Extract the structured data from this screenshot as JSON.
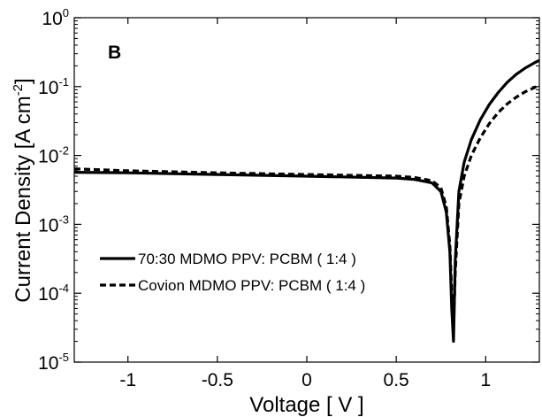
{
  "chart_data": {
    "type": "line",
    "panel_label": "B",
    "xlabel": "Voltage [ V ]",
    "ylabel": {
      "text": "Current Density [A cm",
      "sup": "-2",
      "close": "]"
    },
    "xlim": [
      -1.3,
      1.3
    ],
    "ylim": [
      1e-05,
      1
    ],
    "yscale": "log",
    "grid": false,
    "legend_position": "lower-left",
    "x_ticks": [
      {
        "value": -1,
        "label": "-1"
      },
      {
        "value": -0.5,
        "label": "-0.5"
      },
      {
        "value": 0,
        "label": "0"
      },
      {
        "value": 0.5,
        "label": "0.5"
      },
      {
        "value": 1,
        "label": "1"
      }
    ],
    "y_ticks": [
      {
        "value": 1e-05,
        "base": "10",
        "exp": "-5"
      },
      {
        "value": 0.0001,
        "base": "10",
        "exp": "-4"
      },
      {
        "value": 0.001,
        "base": "10",
        "exp": "-3"
      },
      {
        "value": 0.01,
        "base": "10",
        "exp": "-2"
      },
      {
        "value": 0.1,
        "base": "10",
        "exp": "-1"
      },
      {
        "value": 1,
        "base": "10",
        "exp": "0"
      }
    ],
    "series": [
      {
        "name": "70:30 MDMO PPV: PCBM ( 1:4 )",
        "style": "solid",
        "color": "#000000",
        "points": [
          [
            -1.3,
            0.0057
          ],
          [
            -1.0,
            0.0056
          ],
          [
            -0.5,
            0.0053
          ],
          [
            0.0,
            0.005
          ],
          [
            0.5,
            0.0047
          ],
          [
            0.6,
            0.0045
          ],
          [
            0.7,
            0.004
          ],
          [
            0.75,
            0.003
          ],
          [
            0.78,
            0.0015
          ],
          [
            0.8,
            0.0004
          ],
          [
            0.81,
            6e-05
          ],
          [
            0.82,
            2e-05
          ],
          [
            0.83,
            0.0003
          ],
          [
            0.85,
            0.003
          ],
          [
            0.88,
            0.008
          ],
          [
            0.92,
            0.017
          ],
          [
            0.97,
            0.033
          ],
          [
            1.02,
            0.055
          ],
          [
            1.07,
            0.082
          ],
          [
            1.12,
            0.115
          ],
          [
            1.17,
            0.15
          ],
          [
            1.22,
            0.185
          ],
          [
            1.27,
            0.22
          ],
          [
            1.3,
            0.24
          ]
        ]
      },
      {
        "name": "Covion MDMO PPV: PCBM ( 1:4 )",
        "style": "dashed",
        "color": "#000000",
        "points": [
          [
            -1.3,
            0.0064
          ],
          [
            -1.0,
            0.006
          ],
          [
            -0.5,
            0.0056
          ],
          [
            0.0,
            0.0053
          ],
          [
            0.5,
            0.005
          ],
          [
            0.6,
            0.0048
          ],
          [
            0.7,
            0.0043
          ],
          [
            0.75,
            0.0034
          ],
          [
            0.78,
            0.0018
          ],
          [
            0.8,
            0.0005
          ],
          [
            0.81,
            0.0001
          ],
          [
            0.82,
            3e-05
          ],
          [
            0.83,
            0.0002
          ],
          [
            0.85,
            0.002
          ],
          [
            0.88,
            0.005
          ],
          [
            0.92,
            0.01
          ],
          [
            0.97,
            0.018
          ],
          [
            1.02,
            0.029
          ],
          [
            1.07,
            0.042
          ],
          [
            1.12,
            0.056
          ],
          [
            1.17,
            0.07
          ],
          [
            1.22,
            0.084
          ],
          [
            1.27,
            0.096
          ],
          [
            1.3,
            0.105
          ]
        ]
      }
    ]
  }
}
